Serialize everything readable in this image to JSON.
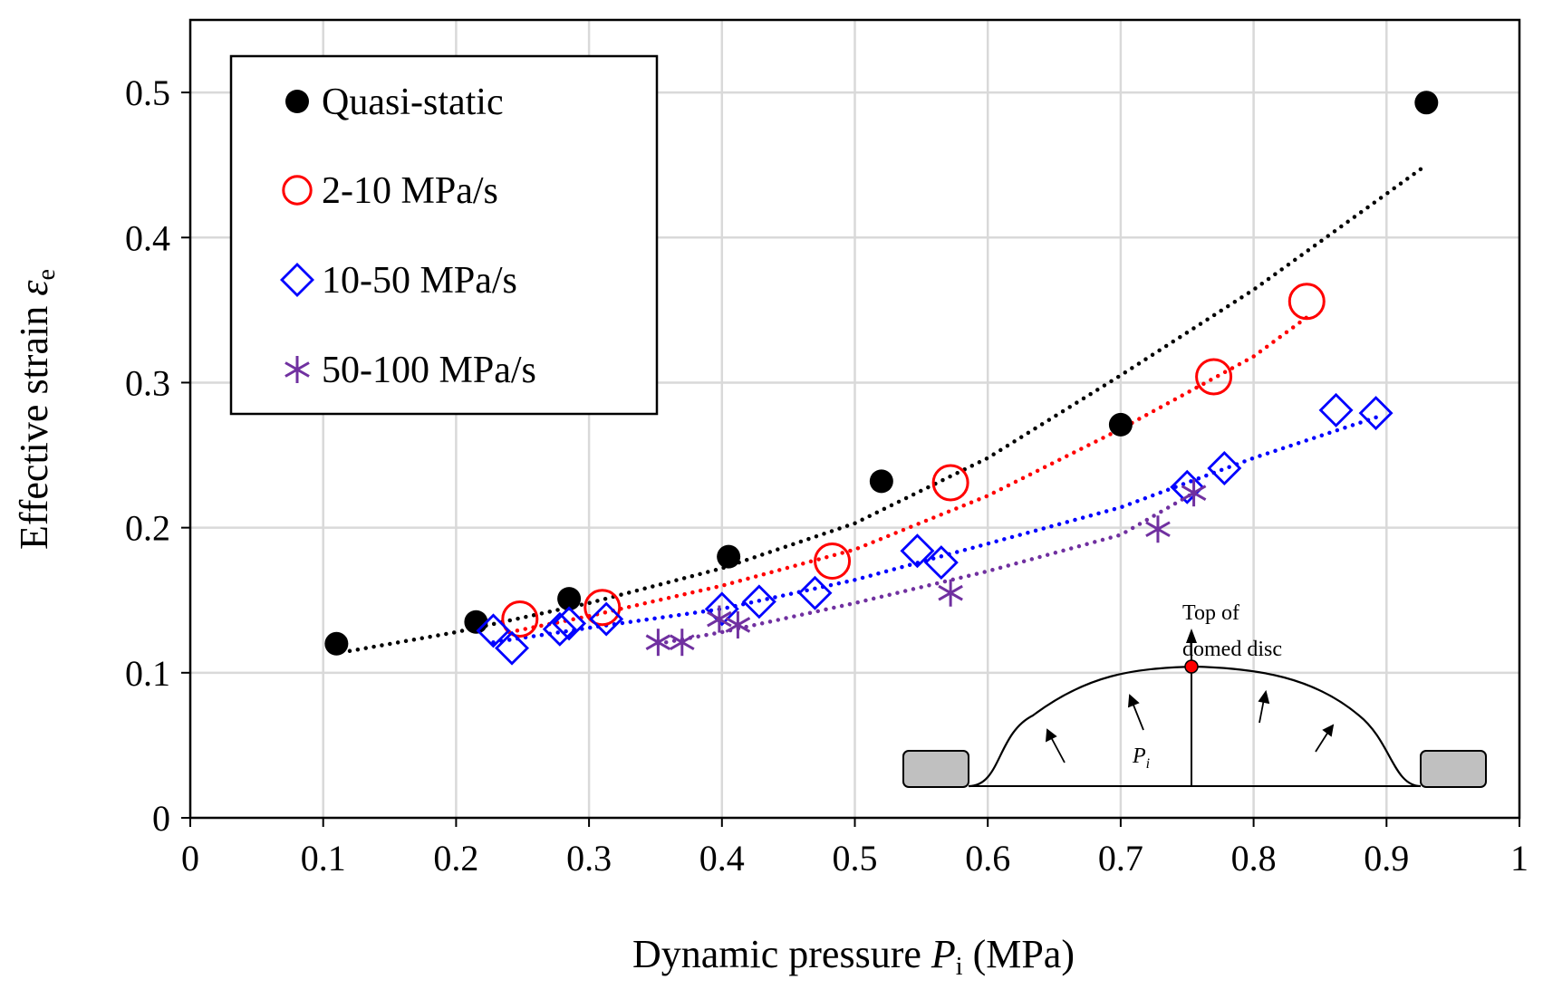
{
  "chart_data": {
    "type": "scatter",
    "xlabel": {
      "main": "Dynamic pressure ",
      "symbol": "P",
      "sub": "i",
      "unit": " (MPa)"
    },
    "ylabel": {
      "main": "Effective strain ",
      "symbol": "ε",
      "sub": "e"
    },
    "xlim": [
      0,
      1
    ],
    "ylim": [
      0,
      0.55
    ],
    "x_ticks": [
      0,
      0.1,
      0.2,
      0.3,
      0.4,
      0.5,
      0.6,
      0.7,
      0.8,
      0.9,
      1
    ],
    "y_ticks": [
      0,
      0.1,
      0.2,
      0.3,
      0.4,
      0.5
    ],
    "x_tick_labels": [
      "0",
      "0.1",
      "0.2",
      "0.3",
      "0.4",
      "0.5",
      "0.6",
      "0.7",
      "0.8",
      "0.9",
      "1"
    ],
    "y_tick_labels": [
      "0",
      "0.1",
      "0.2",
      "0.3",
      "0.4",
      "0.5"
    ],
    "grid": true,
    "legend_position": "top-left",
    "series": [
      {
        "name": "Quasi-static",
        "marker": "filled-circle",
        "color": "#000000",
        "x": [
          0.11,
          0.215,
          0.285,
          0.405,
          0.52,
          0.7,
          0.93
        ],
        "y": [
          0.12,
          0.135,
          0.151,
          0.18,
          0.232,
          0.271,
          0.493
        ],
        "trend": {
          "x": [
            0.12,
            0.2,
            0.3,
            0.4,
            0.5,
            0.6,
            0.7,
            0.8,
            0.93
          ],
          "y": [
            0.115,
            0.128,
            0.148,
            0.172,
            0.203,
            0.248,
            0.305,
            0.364,
            0.45
          ]
        }
      },
      {
        "name": "2-10 MPa/s",
        "marker": "open-circle",
        "color": "#ff0000",
        "x": [
          0.248,
          0.31,
          0.483,
          0.572,
          0.77,
          0.84
        ],
        "y": [
          0.137,
          0.145,
          0.177,
          0.231,
          0.304,
          0.356
        ],
        "trend": {
          "x": [
            0.24,
            0.3,
            0.4,
            0.5,
            0.6,
            0.7,
            0.8,
            0.84
          ],
          "y": [
            0.128,
            0.139,
            0.16,
            0.185,
            0.222,
            0.268,
            0.318,
            0.345
          ]
        }
      },
      {
        "name": "10-50 MPa/s",
        "marker": "open-diamond",
        "color": "#0000ff",
        "x": [
          0.228,
          0.242,
          0.278,
          0.285,
          0.313,
          0.4,
          0.428,
          0.47,
          0.547,
          0.565,
          0.75,
          0.778,
          0.862,
          0.892
        ],
        "y": [
          0.129,
          0.117,
          0.13,
          0.134,
          0.137,
          0.144,
          0.149,
          0.155,
          0.184,
          0.176,
          0.228,
          0.241,
          0.281,
          0.279
        ],
        "trend": {
          "x": [
            0.228,
            0.3,
            0.4,
            0.5,
            0.6,
            0.7,
            0.8,
            0.892
          ],
          "y": [
            0.121,
            0.131,
            0.144,
            0.164,
            0.189,
            0.214,
            0.248,
            0.276
          ]
        }
      },
      {
        "name": "50-100 MPa/s",
        "marker": "asterisk",
        "color": "#7030a0",
        "x": [
          0.352,
          0.37,
          0.398,
          0.412,
          0.572,
          0.728,
          0.755
        ],
        "y": [
          0.121,
          0.121,
          0.137,
          0.133,
          0.155,
          0.199,
          0.224
        ],
        "trend": {
          "x": [
            0.352,
            0.4,
            0.5,
            0.6,
            0.7,
            0.755
          ],
          "y": [
            0.12,
            0.128,
            0.148,
            0.17,
            0.195,
            0.224
          ]
        }
      }
    ],
    "inset": {
      "label_top": "Top of",
      "label_bottom": "domed disc",
      "pressure_symbol": "P",
      "pressure_sub": "i"
    }
  }
}
